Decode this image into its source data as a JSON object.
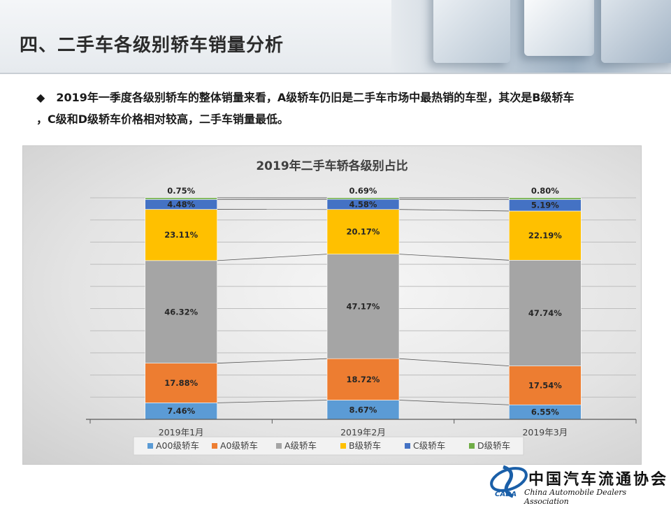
{
  "slide": {
    "title": "四、二手车各级别轿车销量分析",
    "bullet": "◆",
    "text_line1": "2019年一季度各级别轿车的整体销量来看，A级轿车仍旧是二手车市场中最热销的车型，其次是B级轿车",
    "text_line2": "，C级和D级轿车价格相对较高，二手车销量最低。"
  },
  "logo": {
    "name_cn": "中国汽车流通协会",
    "name_en": "China Automobile Dealers Association",
    "abbr": "CADA"
  },
  "chart_data": {
    "type": "bar",
    "stacked": "100%",
    "title": "2019年二手车轿各级别占比",
    "categories": [
      "2019年1月",
      "2019年2月",
      "2019年3月"
    ],
    "series": [
      {
        "name": "A00级轿车",
        "color": "#5b9bd5",
        "values": [
          7.46,
          8.67,
          6.55
        ],
        "labels": [
          "7.46%",
          "8.67%",
          "6.55%"
        ]
      },
      {
        "name": "A0级轿车",
        "color": "#ed7d31",
        "values": [
          17.88,
          18.72,
          17.54
        ],
        "labels": [
          "17.88%",
          "18.72%",
          "17.54%"
        ]
      },
      {
        "name": "A级轿车",
        "color": "#a5a5a5",
        "values": [
          46.32,
          47.17,
          47.74
        ],
        "labels": [
          "46.32%",
          "47.17%",
          "47.74%"
        ]
      },
      {
        "name": "B级轿车",
        "color": "#ffc000",
        "values": [
          23.11,
          20.17,
          22.19
        ],
        "labels": [
          "23.11%",
          "20.17%",
          "22.19%"
        ]
      },
      {
        "name": "C级轿车",
        "color": "#4472c4",
        "values": [
          4.48,
          4.58,
          5.19
        ],
        "labels": [
          "4.48%",
          "4.58%",
          "5.19%"
        ]
      },
      {
        "name": "D级轿车",
        "color": "#70ad47",
        "values": [
          0.75,
          0.69,
          0.8
        ],
        "labels": [
          "0.75%",
          "0.69%",
          "0.80%"
        ]
      }
    ],
    "ylim": [
      0,
      100
    ],
    "grid": true,
    "series_lines": true,
    "legend_position": "bottom"
  }
}
